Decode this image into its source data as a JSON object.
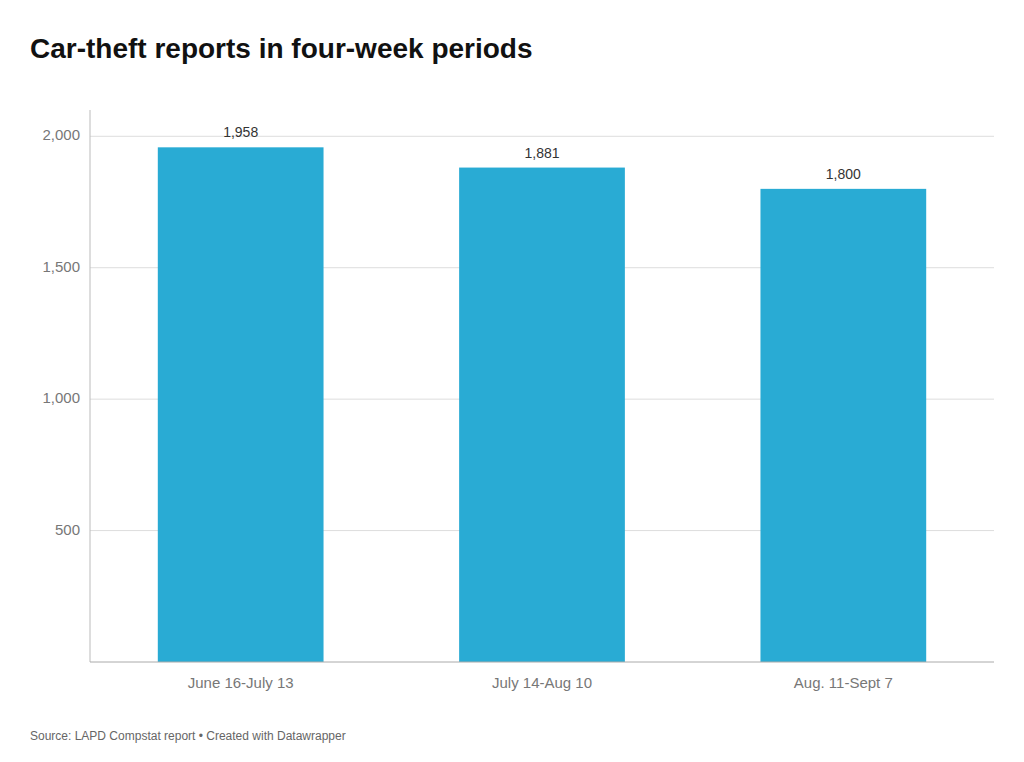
{
  "chart_data": {
    "type": "bar",
    "title": "Car-theft reports in four-week periods",
    "categories": [
      "June 16-July 13",
      "July 14-Aug 10",
      "Aug. 11-Sept 7"
    ],
    "values": [
      1958,
      1881,
      1800
    ],
    "value_labels": [
      "1,958",
      "1,881",
      "1,800"
    ],
    "data_labels": true,
    "color": "#29ABD4",
    "ylim": [
      0,
      2100
    ],
    "yticks": [
      500,
      {
        "value": 1000,
        "label": "1,000"
      },
      {
        "value": 1500,
        "label": "1,500"
      },
      {
        "value": 2000,
        "label": "2,000"
      }
    ],
    "grid": true,
    "annotations": [
      "Source: LAPD Compstat report • Created with Datawrapper"
    ]
  }
}
